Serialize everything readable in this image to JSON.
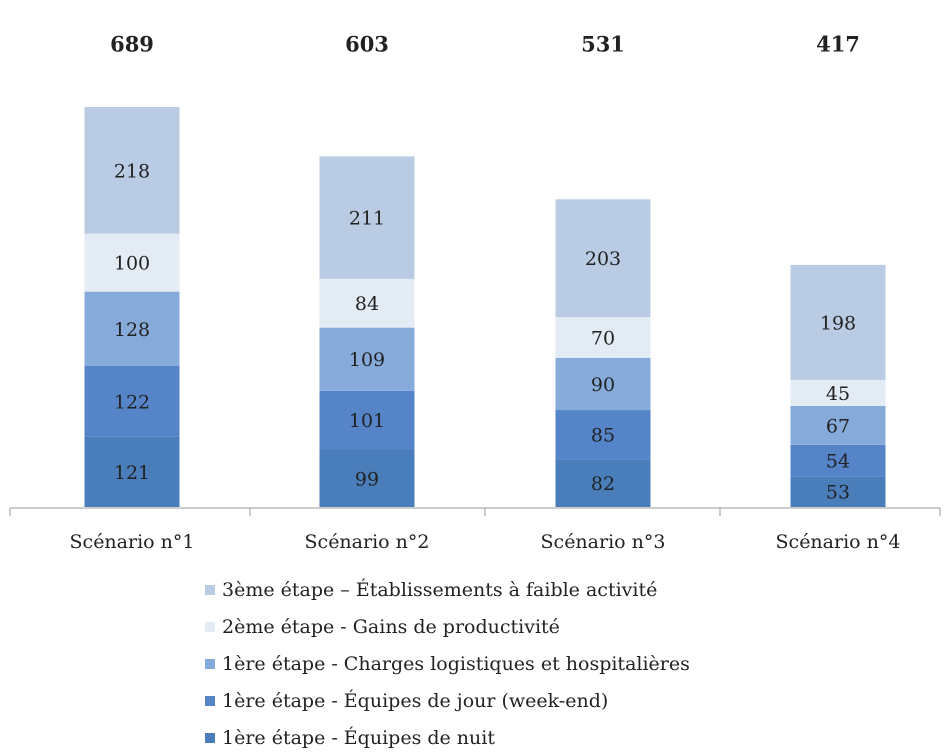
{
  "chart_data": {
    "type": "stacked_bar",
    "categories": [
      "Scénario n°1",
      "Scénario n°2",
      "Scénario n°3",
      "Scénario n°4"
    ],
    "totals": [
      689,
      603,
      531,
      417
    ],
    "series": [
      {
        "name": "1ère étape - Équipes de nuit",
        "color": "#4a7ebb",
        "values": [
          121,
          99,
          82,
          53
        ]
      },
      {
        "name": "1ère étape - Équipes de jour (week-end)",
        "color": "#5585c8",
        "values": [
          122,
          101,
          85,
          54
        ]
      },
      {
        "name": "1ère étape - Charges logistiques et hospitalières",
        "color": "#86abda",
        "values": [
          128,
          109,
          90,
          67
        ]
      },
      {
        "name": "2ème étape - Gains de productivité",
        "color": "#e3ebf5",
        "values": [
          100,
          84,
          70,
          45
        ]
      },
      {
        "name": "3ème étape – Établissements à faible activité",
        "color": "#b9cce4",
        "values": [
          218,
          211,
          203,
          198
        ]
      }
    ]
  }
}
